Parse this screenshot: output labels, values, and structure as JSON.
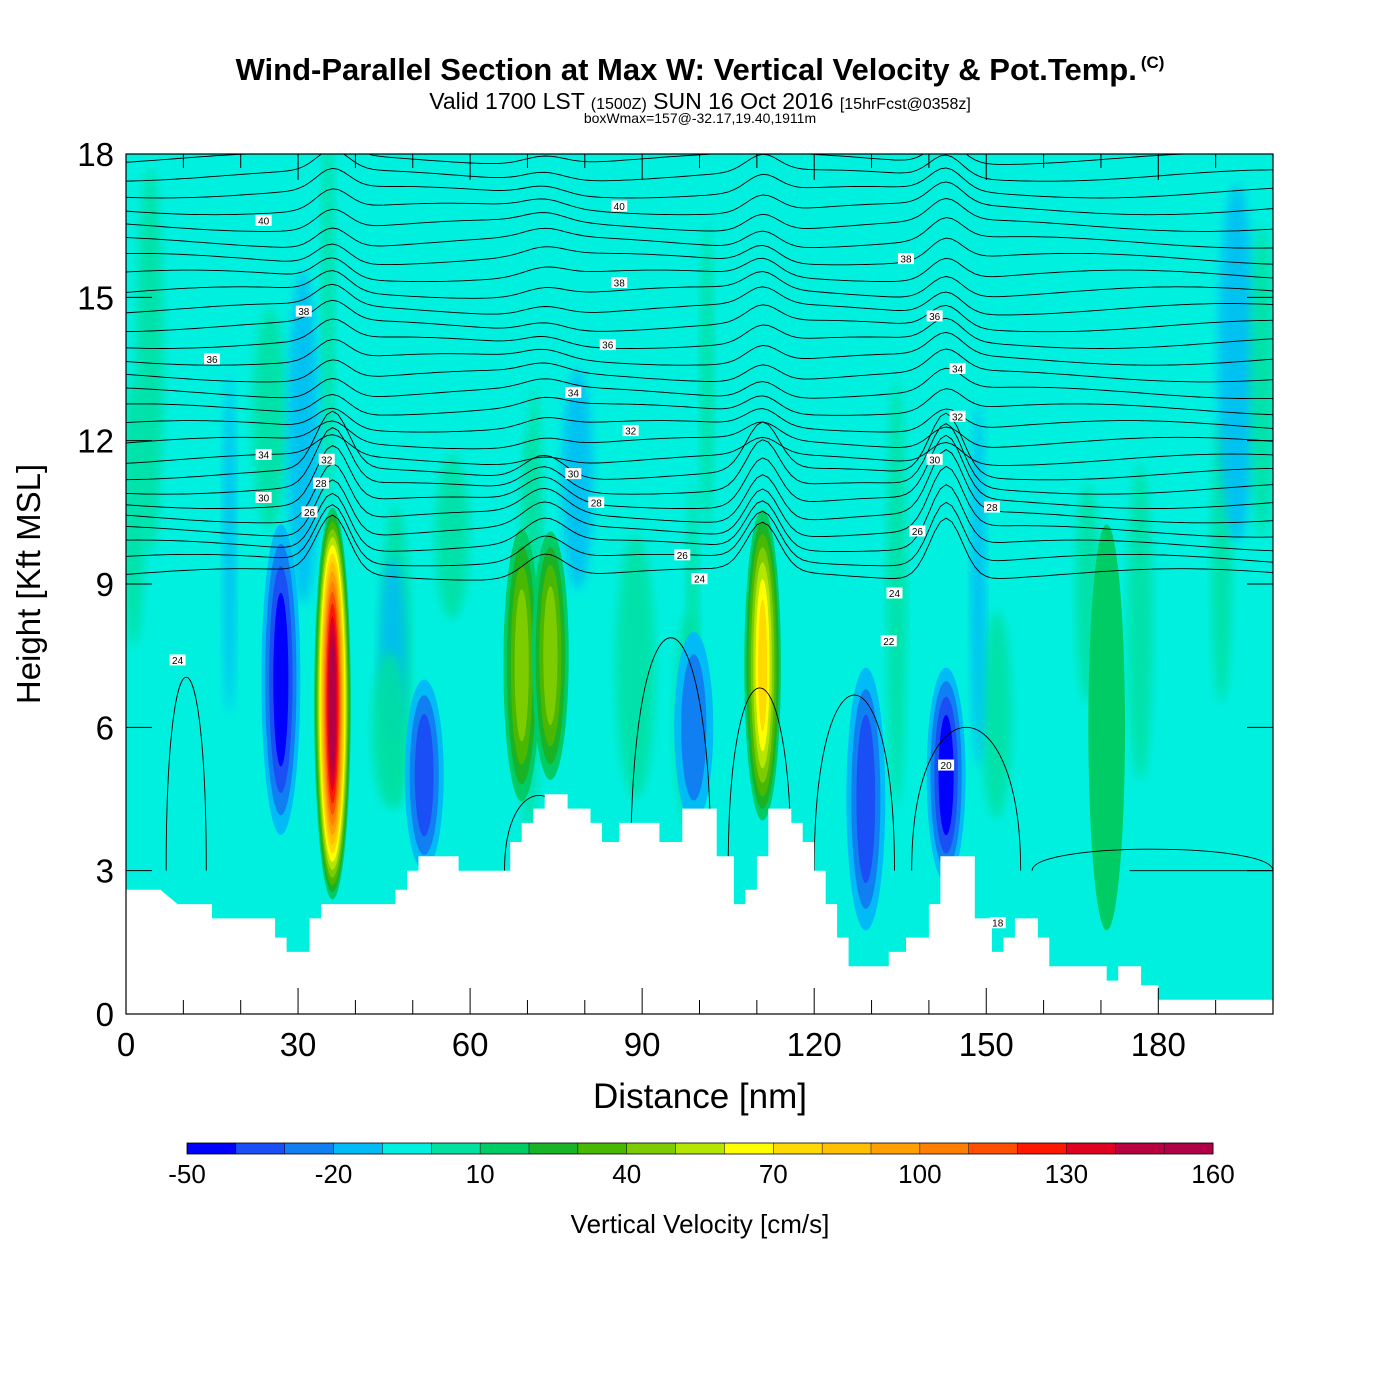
{
  "chart_data": {
    "type": "heatmap",
    "title": "Wind-Parallel Section at Max W: Vertical Velocity & Pot.Temp.",
    "title_mark": "(C)",
    "subtitle": {
      "valid": "Valid 1700 LST",
      "utc": "(1500Z)",
      "date": "SUN 16 Oct 2016",
      "forecast": "[15hrFcst@0358z]"
    },
    "subtitle2": "boxWmax=157@-32.17,19.40,1911m",
    "xlabel": "Distance [nm]",
    "ylabel": "Height [Kft MSL]",
    "xlim": [
      0,
      200
    ],
    "ylim": [
      0,
      18
    ],
    "xticks": [
      0,
      30,
      60,
      90,
      120,
      150,
      180
    ],
    "yticks": [
      0,
      3,
      6,
      9,
      12,
      15,
      18
    ],
    "colorbar": {
      "label": "Vertical Velocity [cm/s]",
      "boundaries": [
        -50,
        -40,
        -30,
        -20,
        -10,
        0,
        10,
        20,
        30,
        40,
        50,
        60,
        70,
        80,
        90,
        100,
        110,
        120,
        130,
        140,
        150,
        160
      ],
      "tick_labels": [
        -50,
        -20,
        10,
        40,
        70,
        100,
        130,
        160
      ],
      "colors": [
        "#0000ff",
        "#1a4ff5",
        "#0f7ff2",
        "#00bbf5",
        "#00f0e0",
        "#00e0a0",
        "#00cc66",
        "#19b328",
        "#48b800",
        "#7ccc00",
        "#b4e600",
        "#ffff00",
        "#ffd900",
        "#ffc000",
        "#ffa000",
        "#ff8000",
        "#ff5000",
        "#ff1800",
        "#e00020",
        "#b80040",
        "#b00048"
      ]
    },
    "background_value": 0,
    "updrafts": [
      {
        "x": 36,
        "z_bottom": 2.6,
        "z_top": 10.8,
        "z_core": 6.5,
        "max": 157
      },
      {
        "x": 69,
        "z_bottom": 4.3,
        "z_top": 10.0,
        "z_core": 7.3,
        "max": 42
      },
      {
        "x": 74,
        "z_bottom": 4.3,
        "z_top": 9.5,
        "z_core": 7.5,
        "max": 45
      },
      {
        "x": 111,
        "z_bottom": 3.5,
        "z_top": 10.0,
        "z_core": 7.3,
        "max": 72
      },
      {
        "x": 171,
        "z_bottom": 1.5,
        "z_top": 10.0,
        "z_core": 6.0,
        "max": 15
      }
    ],
    "downdrafts": [
      {
        "x": 27,
        "z_bottom": 3.0,
        "z_top": 9.5,
        "z_core": 7.0,
        "min": -46
      },
      {
        "x": 52,
        "z_bottom": 3.5,
        "z_top": 7.5,
        "z_core": 5.0,
        "min": -35
      },
      {
        "x": 99,
        "z_bottom": 4.0,
        "z_top": 8.0,
        "z_core": 6.0,
        "min": -25
      },
      {
        "x": 129,
        "z_bottom": 1.5,
        "z_top": 7.0,
        "z_core": 4.5,
        "min": -40
      },
      {
        "x": 143,
        "z_bottom": 2.5,
        "z_top": 7.0,
        "z_core": 5.0,
        "min": -48
      }
    ],
    "theta_contour_labels": [
      {
        "value": "40",
        "x": 24,
        "z": 16.6
      },
      {
        "value": "40",
        "x": 86,
        "z": 16.9
      },
      {
        "value": "38",
        "x": 31,
        "z": 14.7
      },
      {
        "value": "38",
        "x": 86,
        "z": 15.3
      },
      {
        "value": "38",
        "x": 136,
        "z": 15.8
      },
      {
        "value": "36",
        "x": 15,
        "z": 13.7
      },
      {
        "value": "36",
        "x": 84,
        "z": 14.0
      },
      {
        "value": "36",
        "x": 141,
        "z": 14.6
      },
      {
        "value": "34",
        "x": 24,
        "z": 11.7
      },
      {
        "value": "34",
        "x": 78,
        "z": 13.0
      },
      {
        "value": "34",
        "x": 145,
        "z": 13.5
      },
      {
        "value": "32",
        "x": 35,
        "z": 11.6
      },
      {
        "value": "32",
        "x": 88,
        "z": 12.2
      },
      {
        "value": "32",
        "x": 145,
        "z": 12.5
      },
      {
        "value": "30",
        "x": 24,
        "z": 10.8
      },
      {
        "value": "30",
        "x": 78,
        "z": 11.3
      },
      {
        "value": "30",
        "x": 141,
        "z": 11.6
      },
      {
        "value": "28",
        "x": 34,
        "z": 11.1
      },
      {
        "value": "28",
        "x": 82,
        "z": 10.7
      },
      {
        "value": "28",
        "x": 151,
        "z": 10.6
      },
      {
        "value": "26",
        "x": 32,
        "z": 10.5
      },
      {
        "value": "26",
        "x": 97,
        "z": 9.6
      },
      {
        "value": "26",
        "x": 138,
        "z": 10.1
      },
      {
        "value": "24",
        "x": 100,
        "z": 9.1
      },
      {
        "value": "24",
        "x": 134,
        "z": 8.8
      },
      {
        "value": "24",
        "x": 9,
        "z": 7.4
      },
      {
        "value": "22",
        "x": 133,
        "z": 7.8
      },
      {
        "value": "20",
        "x": 143,
        "z": 5.2
      },
      {
        "value": "18",
        "x": 152,
        "z": 1.9
      }
    ],
    "terrain": [
      [
        0,
        2.6
      ],
      [
        6,
        2.6
      ],
      [
        9,
        2.3
      ],
      [
        15,
        2.3
      ],
      [
        15,
        2.0
      ],
      [
        26,
        2.0
      ],
      [
        26,
        1.6
      ],
      [
        28,
        1.6
      ],
      [
        28,
        1.3
      ],
      [
        32,
        1.3
      ],
      [
        32,
        2.0
      ],
      [
        34,
        2.0
      ],
      [
        34,
        2.3
      ],
      [
        47,
        2.3
      ],
      [
        47,
        2.6
      ],
      [
        49,
        2.6
      ],
      [
        49,
        3.0
      ],
      [
        51,
        3.0
      ],
      [
        51,
        3.3
      ],
      [
        58,
        3.3
      ],
      [
        58,
        3.0
      ],
      [
        67,
        3.0
      ],
      [
        67,
        3.6
      ],
      [
        69,
        3.6
      ],
      [
        69,
        4.0
      ],
      [
        71,
        4.0
      ],
      [
        71,
        4.3
      ],
      [
        73,
        4.3
      ],
      [
        73,
        4.6
      ],
      [
        77,
        4.6
      ],
      [
        77,
        4.3
      ],
      [
        81,
        4.3
      ],
      [
        81,
        4.0
      ],
      [
        83,
        4.0
      ],
      [
        83,
        3.6
      ],
      [
        86,
        3.6
      ],
      [
        86,
        4.0
      ],
      [
        93,
        4.0
      ],
      [
        93,
        3.6
      ],
      [
        97,
        3.6
      ],
      [
        97,
        4.3
      ],
      [
        103,
        4.3
      ],
      [
        103,
        3.3
      ],
      [
        106,
        3.3
      ],
      [
        106,
        2.3
      ],
      [
        108,
        2.3
      ],
      [
        108,
        2.6
      ],
      [
        110,
        2.6
      ],
      [
        110,
        3.3
      ],
      [
        112,
        3.3
      ],
      [
        112,
        4.3
      ],
      [
        116,
        4.3
      ],
      [
        116,
        4.0
      ],
      [
        118,
        4.0
      ],
      [
        118,
        3.6
      ],
      [
        120,
        3.6
      ],
      [
        120,
        3.0
      ],
      [
        122,
        3.0
      ],
      [
        122,
        2.3
      ],
      [
        124,
        2.3
      ],
      [
        124,
        1.6
      ],
      [
        126,
        1.6
      ],
      [
        126,
        1.0
      ],
      [
        133,
        1.0
      ],
      [
        133,
        1.3
      ],
      [
        136,
        1.3
      ],
      [
        136,
        1.6
      ],
      [
        140,
        1.6
      ],
      [
        140,
        2.3
      ],
      [
        142,
        2.3
      ],
      [
        142,
        3.3
      ],
      [
        148,
        3.3
      ],
      [
        148,
        2.0
      ],
      [
        151,
        2.0
      ],
      [
        151,
        1.3
      ],
      [
        153,
        1.3
      ],
      [
        153,
        1.6
      ],
      [
        155,
        1.6
      ],
      [
        155,
        2.0
      ],
      [
        159,
        2.0
      ],
      [
        159,
        1.6
      ],
      [
        161,
        1.6
      ],
      [
        161,
        1.0
      ],
      [
        171,
        1.0
      ],
      [
        171,
        0.7
      ],
      [
        173,
        0.7
      ],
      [
        173,
        1.0
      ],
      [
        177,
        1.0
      ],
      [
        177,
        0.6
      ],
      [
        180,
        0.6
      ],
      [
        180,
        0.3
      ],
      [
        200,
        0.3
      ],
      [
        200,
        0
      ]
    ]
  }
}
